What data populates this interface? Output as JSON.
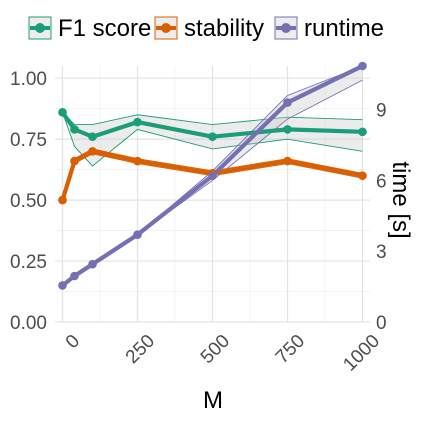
{
  "chart_data": {
    "type": "line",
    "xlabel": "M",
    "ylabel": "",
    "y2label": "time [s]",
    "x_ticks": [
      "0",
      "250",
      "500",
      "750",
      "1000"
    ],
    "y_ticks": [
      "0.00",
      "0.25",
      "0.50",
      "0.75",
      "1.00"
    ],
    "y2_ticks": [
      "0",
      "3",
      "6",
      "9"
    ],
    "xlim": [
      -25,
      1025
    ],
    "ylim": [
      0,
      1.05
    ],
    "y2lim": [
      0,
      10.85
    ],
    "grid": true,
    "legend_position": "top",
    "series": [
      {
        "name": "F1 score",
        "color": "#1b9e77",
        "axis": "left",
        "x": [
          0,
          40,
          100,
          250,
          500,
          750,
          1000
        ],
        "values": [
          0.86,
          0.79,
          0.76,
          0.82,
          0.76,
          0.79,
          0.78
        ],
        "band_upper": [
          0.86,
          0.81,
          0.81,
          0.85,
          0.81,
          0.84,
          0.83
        ],
        "band_lower": [
          0.86,
          0.72,
          0.64,
          0.79,
          0.71,
          0.75,
          0.7
        ]
      },
      {
        "name": "stability",
        "color": "#d95f02",
        "axis": "left",
        "x": [
          0,
          40,
          100,
          250,
          500,
          750,
          1000
        ],
        "values": [
          0.5,
          0.66,
          0.7,
          0.66,
          0.61,
          0.66,
          0.6
        ],
        "band_upper": [
          0.5,
          0.67,
          0.71,
          0.67,
          0.62,
          0.67,
          0.61
        ],
        "band_lower": [
          0.5,
          0.65,
          0.69,
          0.65,
          0.6,
          0.65,
          0.59
        ]
      },
      {
        "name": "runtime",
        "color": "#7570b3",
        "axis": "right",
        "x": [
          0,
          40,
          100,
          250,
          500,
          750,
          1000
        ],
        "values": [
          1.55,
          1.95,
          2.45,
          3.7,
          6.2,
          9.3,
          10.85
        ],
        "band_upper": [
          1.55,
          1.95,
          2.45,
          3.7,
          6.4,
          9.6,
          10.85
        ],
        "band_lower": [
          1.55,
          1.95,
          2.45,
          3.7,
          6.0,
          8.6,
          10.25
        ]
      }
    ]
  }
}
